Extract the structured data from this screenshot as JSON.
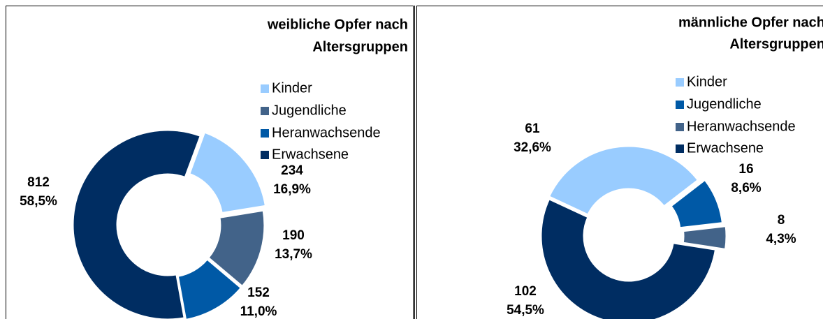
{
  "chart_data": [
    {
      "type": "donut",
      "title": [
        "weibliche Opfer nach",
        "Altersgruppen"
      ],
      "categories": [
        "Kinder",
        "Jugendliche",
        "Heranwachsende",
        "Erwachsene"
      ],
      "values": [
        234,
        190,
        152,
        812
      ],
      "shares": [
        16.9,
        13.7,
        11.0,
        58.5
      ],
      "share_labels": [
        "16,9%",
        "13,7%",
        "11,0%",
        "58,5%"
      ],
      "colors": [
        "#99ccff",
        "#426389",
        "#0059a6",
        "#002d62"
      ]
    },
    {
      "type": "donut",
      "title": [
        "männliche Opfer nach",
        "Altersgruppen"
      ],
      "categories": [
        "Kinder",
        "Jugendliche",
        "Heranwachsende",
        "Erwachsene"
      ],
      "values": [
        61,
        16,
        8,
        102
      ],
      "shares": [
        32.6,
        8.6,
        4.3,
        54.5
      ],
      "share_labels": [
        "32,6%",
        "8,6%",
        "4,3%",
        "54,5%"
      ],
      "colors": [
        "#99ccff",
        "#0059a6",
        "#426389",
        "#002d62"
      ]
    }
  ]
}
